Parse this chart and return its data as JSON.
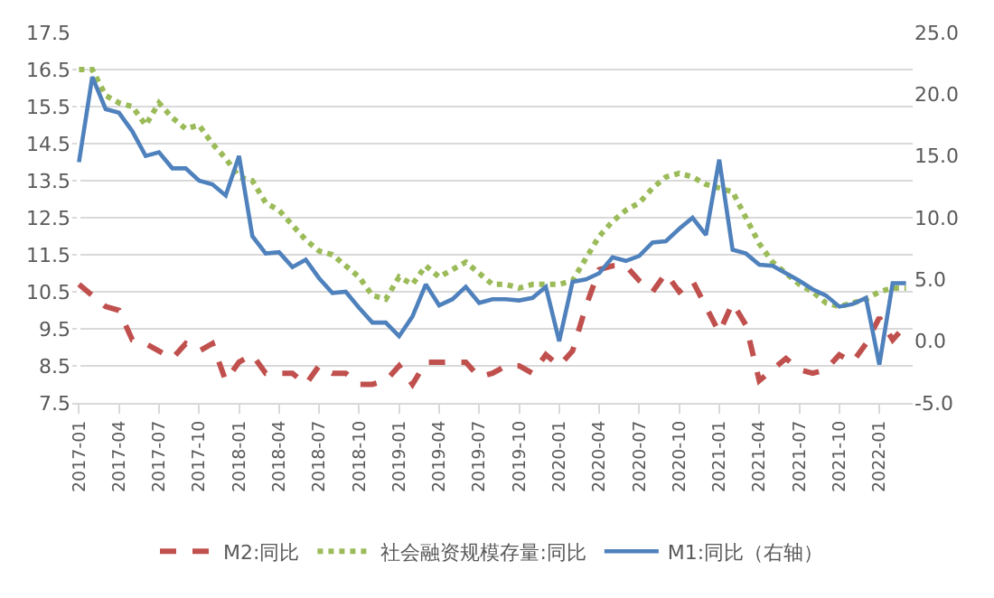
{
  "chart_data": {
    "type": "line",
    "categories": [
      "2017-01",
      null,
      null,
      "2017-04",
      null,
      null,
      "2017-07",
      null,
      null,
      "2017-10",
      null,
      null,
      "2018-01",
      null,
      null,
      "2018-04",
      null,
      null,
      "2018-07",
      null,
      null,
      "2018-10",
      null,
      null,
      "2019-01",
      null,
      null,
      "2019-04",
      null,
      null,
      "2019-07",
      null,
      null,
      "2019-10",
      null,
      null,
      "2020-01",
      null,
      null,
      "2020-04",
      null,
      null,
      "2020-07",
      null,
      null,
      "2020-10",
      null,
      null,
      "2021-01",
      null,
      null,
      "2021-04",
      null,
      null,
      "2021-07",
      null,
      null,
      "2021-10",
      null,
      null,
      "2022-01",
      null,
      null
    ],
    "series": [
      {
        "name": "M2:同比",
        "color": "#c0504d",
        "line_style": "dashed",
        "values": [
          10.7,
          10.4,
          10.1,
          10.0,
          9.2,
          9.1,
          8.9,
          8.7,
          9.1,
          8.9,
          9.1,
          8.1,
          8.6,
          8.8,
          8.3,
          8.3,
          8.3,
          8.0,
          8.5,
          8.3,
          8.3,
          8.0,
          8.0,
          8.1,
          8.5,
          8.0,
          8.6,
          8.6,
          8.6,
          8.6,
          8.2,
          8.3,
          8.5,
          8.5,
          8.3,
          8.8,
          8.5,
          8.9,
          10.1,
          11.1,
          11.2,
          11.2,
          10.8,
          10.5,
          11.0,
          10.5,
          10.8,
          10.1,
          9.4,
          10.2,
          9.6,
          8.1,
          8.4,
          8.7,
          8.4,
          8.3,
          8.4,
          8.8,
          8.6,
          9.1,
          9.8,
          9.2,
          9.6
        ]
      },
      {
        "name": "社会融资规模存量:同比",
        "color": "#9bbb59",
        "line_style": "dotted",
        "values": [
          16.5,
          16.5,
          15.8,
          15.6,
          15.5,
          15.0,
          15.6,
          15.2,
          14.9,
          15.0,
          14.5,
          14.1,
          13.6,
          13.5,
          12.9,
          12.7,
          12.3,
          11.9,
          11.6,
          11.5,
          11.2,
          10.9,
          10.4,
          10.3,
          10.9,
          10.7,
          11.2,
          10.9,
          11.1,
          11.3,
          11.0,
          10.7,
          10.7,
          10.6,
          10.7,
          10.7,
          10.7,
          10.8,
          11.4,
          12.0,
          12.4,
          12.7,
          12.9,
          13.3,
          13.6,
          13.7,
          13.6,
          13.4,
          13.3,
          13.2,
          12.5,
          11.8,
          11.3,
          11.0,
          10.7,
          10.5,
          10.2,
          10.1,
          10.2,
          10.3,
          10.5,
          10.6,
          10.6
        ]
      },
      {
        "name": "M1:同比（右轴）",
        "color": "#4f81bd",
        "line_style": "solid",
        "axis": "y2",
        "values": [
          14.5,
          21.4,
          18.8,
          18.5,
          17.0,
          15.0,
          15.3,
          14.0,
          14.0,
          13.0,
          12.7,
          11.8,
          15.0,
          8.5,
          7.1,
          7.2,
          6.0,
          6.6,
          5.1,
          3.9,
          4.0,
          2.7,
          1.5,
          1.5,
          0.4,
          2.0,
          4.6,
          2.9,
          3.4,
          4.4,
          3.1,
          3.4,
          3.4,
          3.3,
          3.5,
          4.4,
          0.0,
          4.8,
          5.0,
          5.5,
          6.8,
          6.5,
          6.9,
          8.0,
          8.1,
          9.1,
          10.0,
          8.6,
          14.7,
          7.4,
          7.1,
          6.2,
          6.1,
          5.5,
          4.9,
          4.2,
          3.7,
          2.8,
          3.0,
          3.5,
          -1.9,
          4.7,
          4.7
        ]
      }
    ],
    "ylim": [
      7.5,
      17.5
    ],
    "yticks": [
      7.5,
      8.5,
      9.5,
      10.5,
      11.5,
      12.5,
      13.5,
      14.5,
      15.5,
      16.5,
      17.5
    ],
    "y2lim": [
      -5.0,
      25.0
    ],
    "y2ticks": [
      {
        "value": -5,
        "label": "-5.0"
      },
      {
        "value": 0,
        "label": "0.0"
      },
      {
        "value": 5,
        "label": "5.0"
      },
      {
        "value": 10,
        "label": "10.0"
      },
      {
        "value": 15,
        "label": "15.0"
      },
      {
        "value": 20,
        "label": "20.0"
      },
      {
        "value": 25,
        "label": "25.0"
      }
    ],
    "grid": "y",
    "legend": "bottom",
    "marker": "none"
  }
}
